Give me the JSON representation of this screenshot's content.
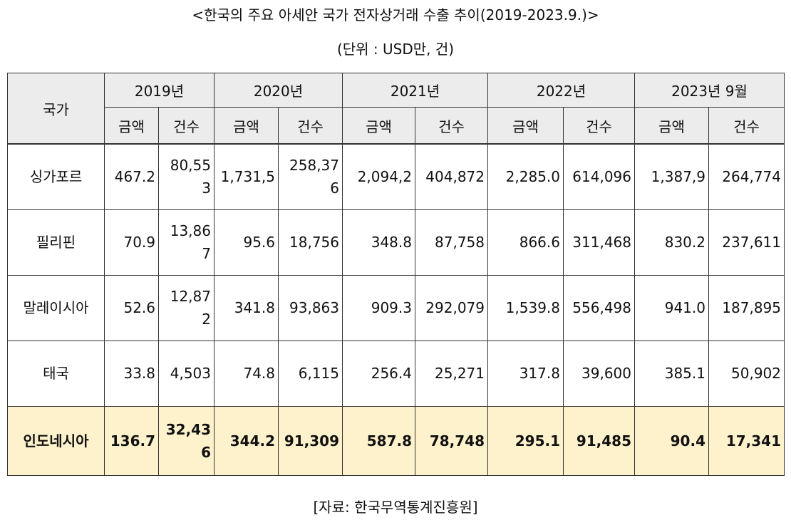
{
  "title": "<한국의 주요 아세안 국가 전자상거래 수출 추이(2019-2023.9.)>",
  "unit": "(단위 : USD만, 건)",
  "source": "[자료: 한국무역통계진흥원]",
  "table": {
    "country_header": "국가",
    "years": [
      "2019년",
      "2020년",
      "2021년",
      "2022년",
      "2023년 9월"
    ],
    "sub_headers": [
      "금액",
      "건수",
      "금액",
      "건수",
      "금액",
      "건수",
      "금액",
      "건수",
      "금액",
      "건수"
    ],
    "rows": [
      {
        "country": "싱가포르",
        "cells": [
          "467.2",
          "80,553",
          "1,731,5",
          "258,376",
          "2,094,2",
          "404,872",
          "2,285.0",
          "614,096",
          "1,387,9",
          "264,774"
        ]
      },
      {
        "country": "필리핀",
        "cells": [
          "70.9",
          "13,867",
          "95.6",
          "18,756",
          "348.8",
          "87,758",
          "866.6",
          "311,468",
          "830.2",
          "237,611"
        ]
      },
      {
        "country": "말레이시아",
        "cells": [
          "52.6",
          "12,872",
          "341.8",
          "93,863",
          "909.3",
          "292,079",
          "1,539.8",
          "556,498",
          "941.0",
          "187,895"
        ]
      },
      {
        "country": "태국",
        "cells": [
          "33.8",
          "4,503",
          "74.8",
          "6,115",
          "256.4",
          "25,271",
          "317.8",
          "39,600",
          "385.1",
          "50,902"
        ]
      },
      {
        "country": "인도네시아",
        "cells": [
          "136.7",
          "32,436",
          "344.2",
          "91,309",
          "587.8",
          "78,748",
          "295.1",
          "91,485",
          "90.4",
          "17,341"
        ],
        "highlight": true
      }
    ]
  }
}
